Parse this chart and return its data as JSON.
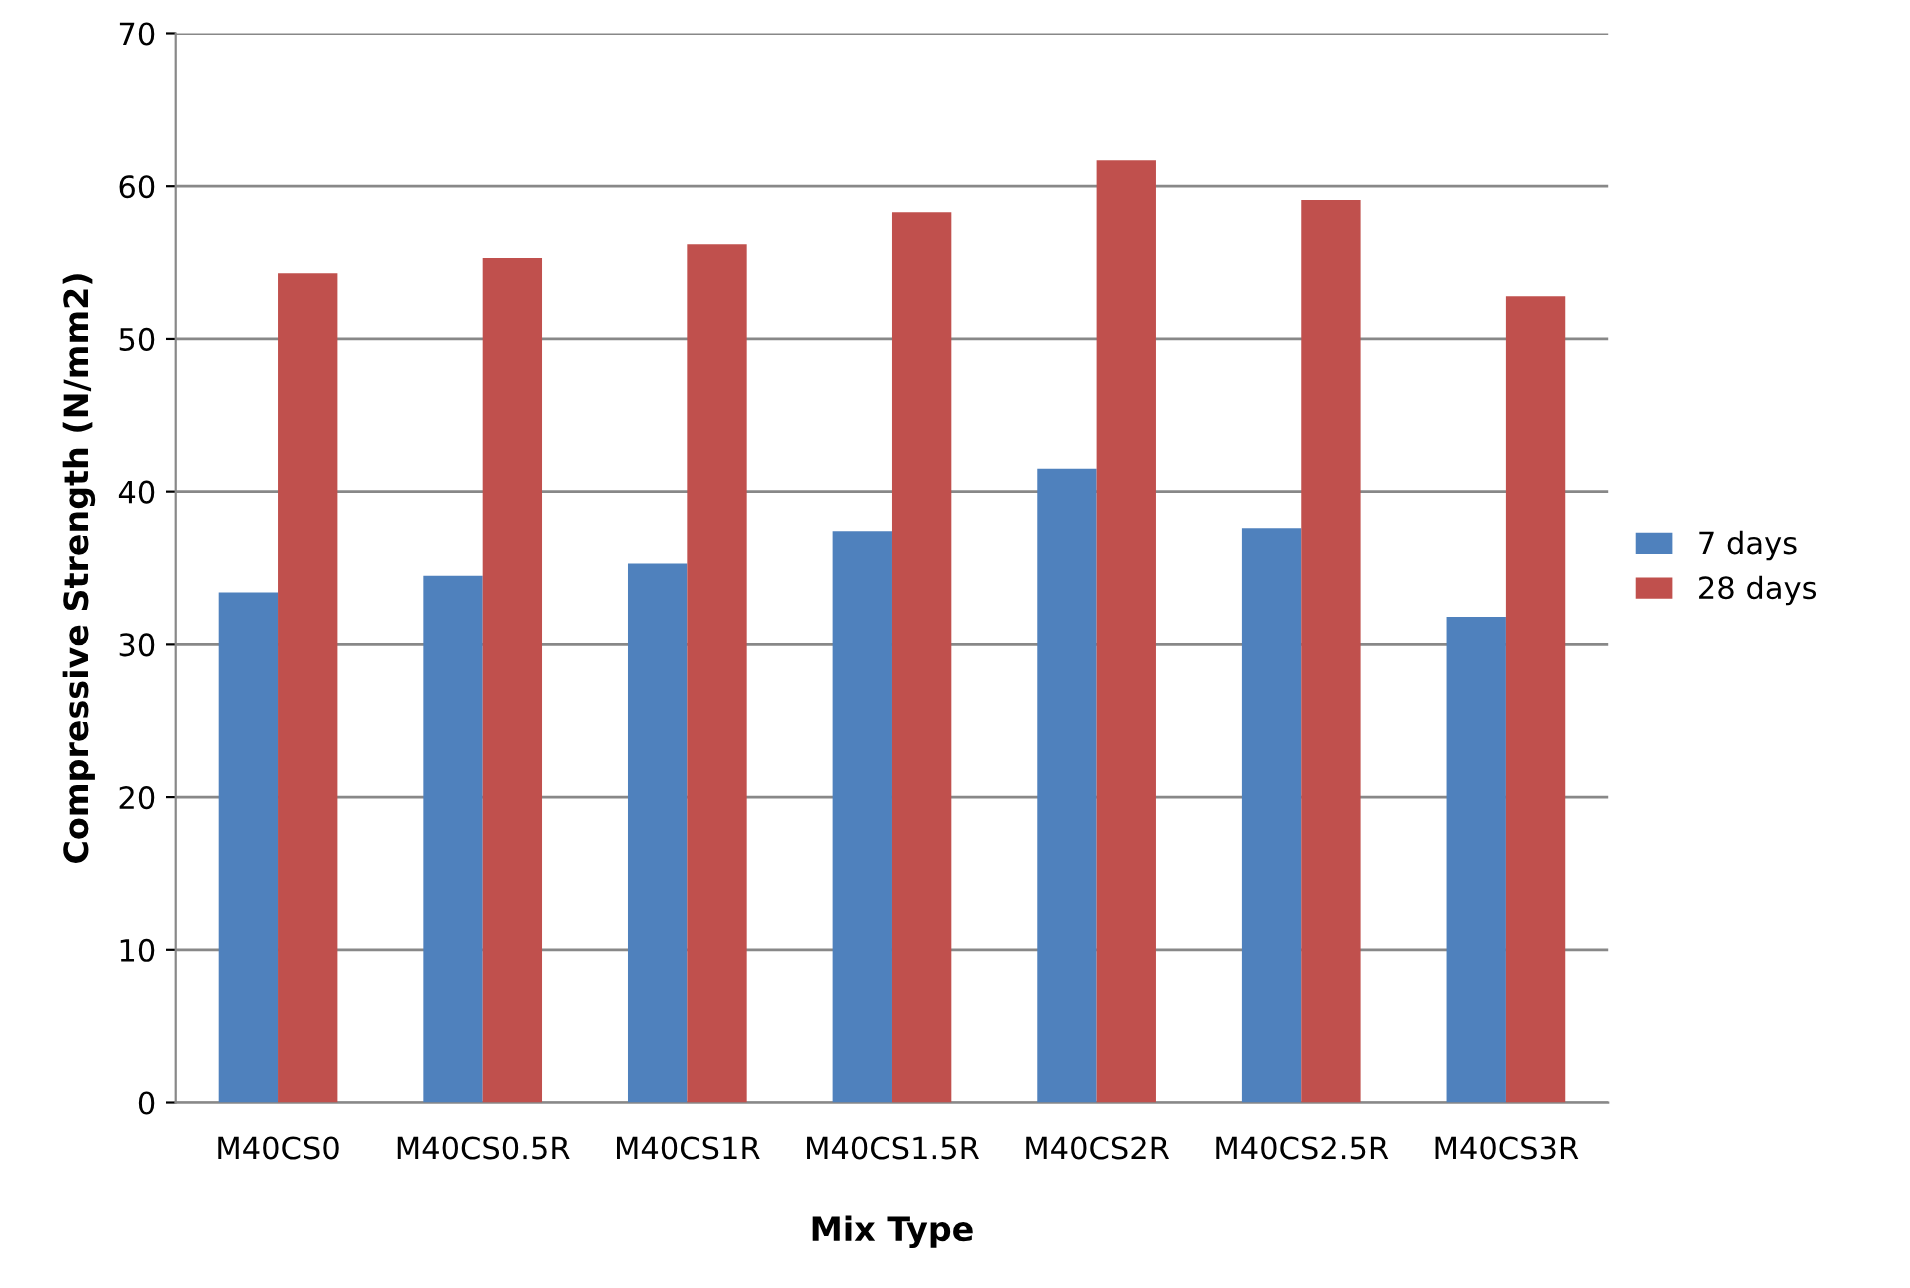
{
  "chart_data": {
    "type": "bar",
    "xlabel": "Mix Type",
    "ylabel": "Compressive Strength (N/mm2)",
    "categories": [
      "M40CS0",
      "M40CS0.5R",
      "M40CS1R",
      "M40CS1.5R",
      "M40CS2R",
      "M40CS2.5R",
      "M40CS3R"
    ],
    "series": [
      {
        "name": "7 days",
        "color": "#4f81bd",
        "values": [
          33.4,
          34.5,
          35.3,
          37.4,
          41.5,
          37.6,
          31.8
        ]
      },
      {
        "name": "28 days",
        "color": "#c0504d",
        "values": [
          54.3,
          55.3,
          56.2,
          58.3,
          61.7,
          59.1,
          52.8
        ]
      }
    ],
    "ylim": [
      0,
      70
    ],
    "yticks": [
      0,
      10,
      20,
      30,
      40,
      50,
      60,
      70
    ],
    "grid": "y",
    "legend": "right"
  }
}
